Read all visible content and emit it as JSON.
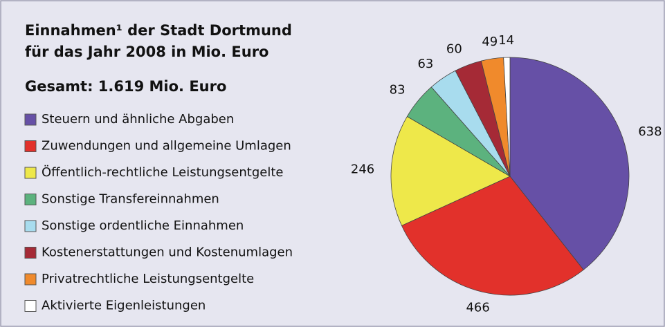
{
  "chart_data": {
    "type": "pie",
    "title_lines": [
      "Einnahmen¹ der Stadt Dortmund",
      "für das Jahr 2008 in Mio. Euro"
    ],
    "subtitle": "Gesamt: 1.619 Mio. Euro",
    "categories": [
      "Steuern und ähnliche Abgaben",
      "Zuwendungen und allgemeine Umlagen",
      "Öffentlich-rechtliche Leistungsentgelte",
      "Sonstige Transfereinnahmen",
      "Sonstige ordentliche Einnahmen",
      "Kostenerstattungen und Kostenumlagen",
      "Privatrechtliche Leistungsentgelte",
      "Aktivierte Eigenleistungen"
    ],
    "values": [
      638,
      466,
      246,
      83,
      63,
      60,
      49,
      14
    ],
    "colors": [
      "#6650a6",
      "#e2312b",
      "#eee84a",
      "#5cb27e",
      "#a8dcee",
      "#a52a36",
      "#f08a2c",
      "#ffffff"
    ],
    "legend": "left"
  }
}
